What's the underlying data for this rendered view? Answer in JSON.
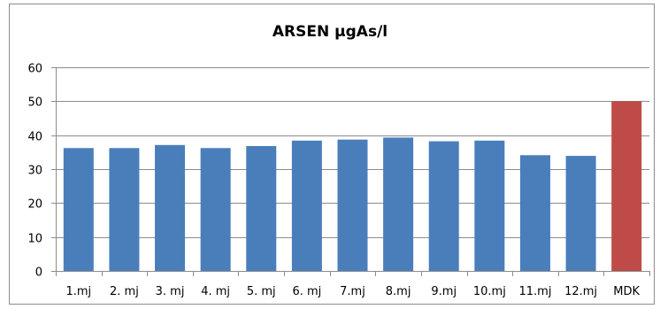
{
  "chart_data": {
    "type": "bar",
    "title": "ARSEN  µgAs/l",
    "categories": [
      "1.mj",
      "2. mj",
      "3. mj",
      "4. mj",
      "5. mj",
      "6. mj",
      "7.mj",
      "8.mj",
      "9.mj",
      "10.mj",
      "11.mj",
      "12.mj",
      "MDK"
    ],
    "values": [
      36.2,
      36.2,
      37.1,
      36.2,
      36.8,
      38.4,
      38.7,
      39.3,
      38.2,
      38.4,
      34.1,
      33.9,
      50
    ],
    "colors": [
      "#4a7ebb",
      "#4a7ebb",
      "#4a7ebb",
      "#4a7ebb",
      "#4a7ebb",
      "#4a7ebb",
      "#4a7ebb",
      "#4a7ebb",
      "#4a7ebb",
      "#4a7ebb",
      "#4a7ebb",
      "#4a7ebb",
      "#be4b48"
    ],
    "ylim": [
      0,
      60
    ],
    "yticks": [
      0,
      10,
      20,
      30,
      40,
      50,
      60
    ],
    "grid": true,
    "gridColor": "#8c8c8c",
    "xlabel": "",
    "ylabel": ""
  }
}
